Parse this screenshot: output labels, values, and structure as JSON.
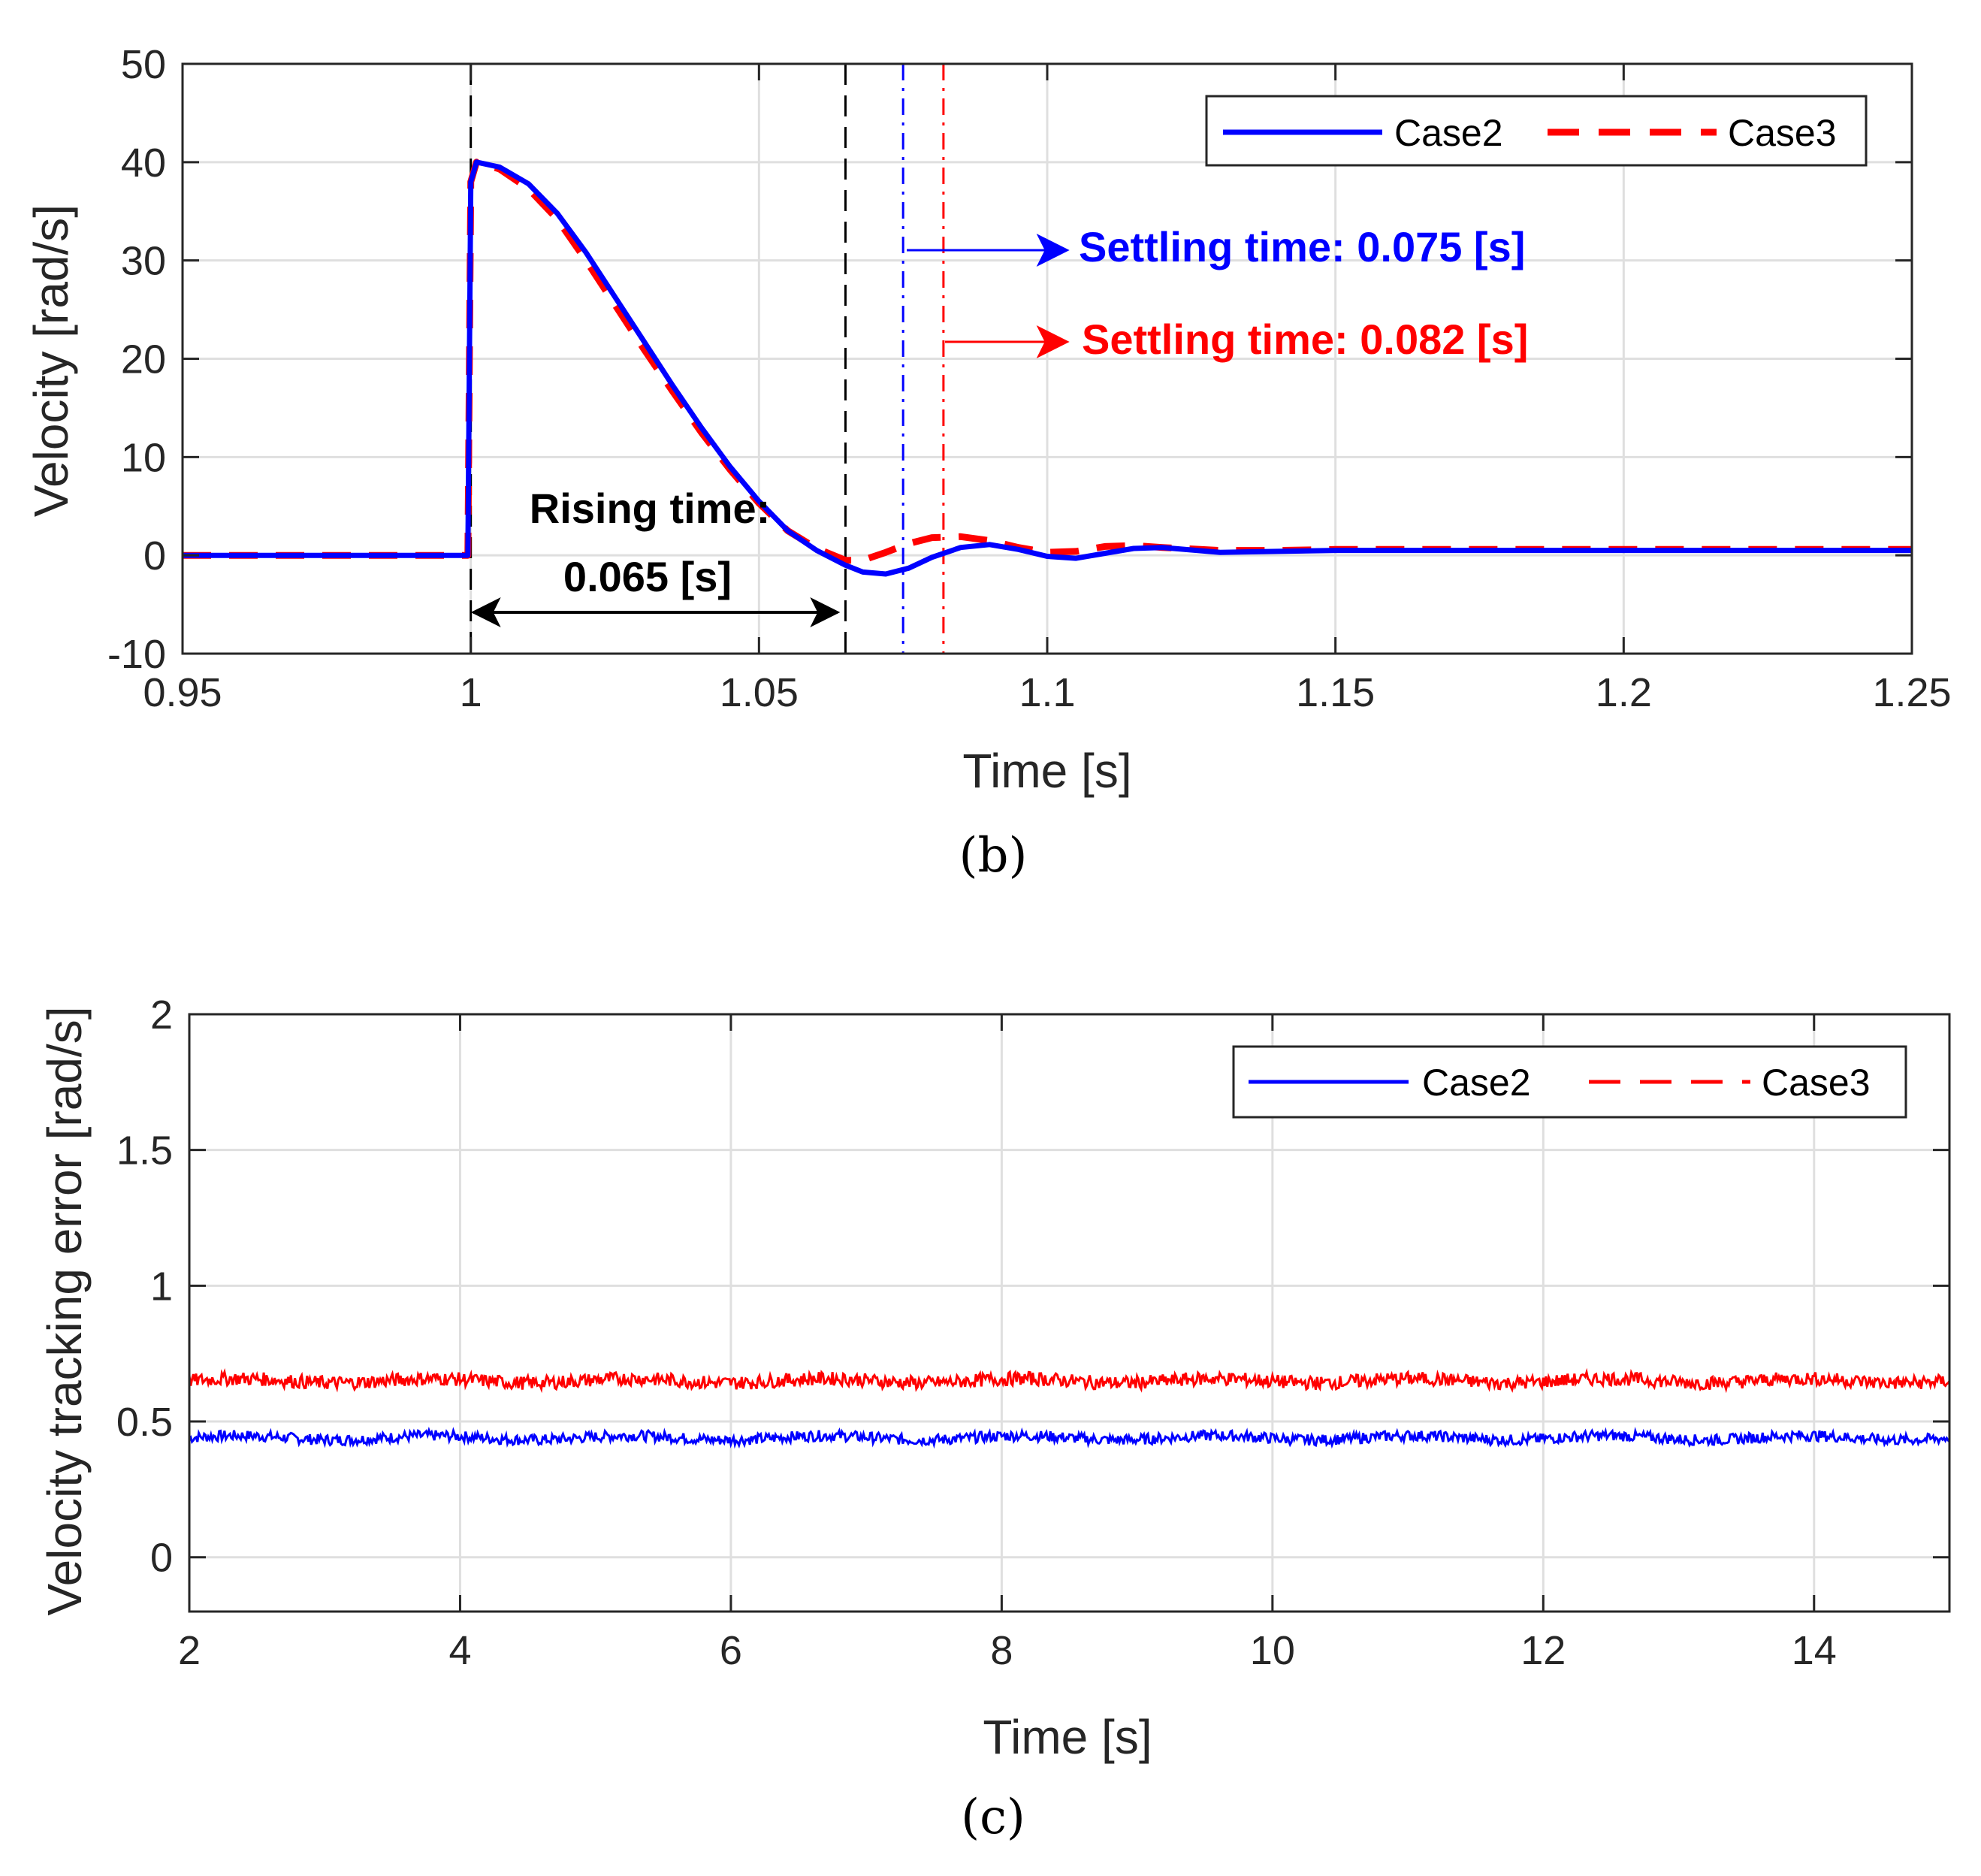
{
  "chart_data": [
    {
      "type": "line",
      "panel": "b",
      "caption": "(b)",
      "xlabel": "Time [s]",
      "ylabel": "Velocity [rad/s]",
      "xlim": [
        0.95,
        1.25
      ],
      "ylim": [
        -10,
        50
      ],
      "xticks": [
        0.95,
        1,
        1.05,
        1.1,
        1.15,
        1.2,
        1.25
      ],
      "xtick_labels": [
        "0.95",
        "1",
        "1.05",
        "1.1",
        "1.15",
        "1.2",
        "1.25"
      ],
      "yticks": [
        -10,
        0,
        10,
        20,
        30,
        40,
        50
      ],
      "ytick_labels": [
        "-10",
        "0",
        "10",
        "20",
        "30",
        "40",
        "50"
      ],
      "grid": true,
      "legend": {
        "position": "top-right",
        "entries": [
          "Case2",
          "Case3"
        ]
      },
      "series": [
        {
          "name": "Case2",
          "color": "#0000ff",
          "style": "solid",
          "x": [
            0.95,
            0.9995,
            1.0,
            1.001,
            1.005,
            1.01,
            1.015,
            1.02,
            1.025,
            1.03,
            1.035,
            1.04,
            1.045,
            1.05,
            1.055,
            1.06,
            1.065,
            1.068,
            1.072,
            1.076,
            1.08,
            1.085,
            1.09,
            1.095,
            1.1,
            1.105,
            1.11,
            1.115,
            1.12,
            1.13,
            1.14,
            1.15,
            1.2,
            1.25
          ],
          "y": [
            0,
            0,
            38,
            40,
            39.5,
            37.8,
            34.8,
            30.8,
            26.3,
            21.8,
            17.3,
            13.0,
            9.0,
            5.5,
            2.5,
            0.5,
            -1.0,
            -1.7,
            -1.9,
            -1.3,
            -0.2,
            0.8,
            1.1,
            0.6,
            -0.1,
            -0.3,
            0.2,
            0.7,
            0.8,
            0.3,
            0.4,
            0.5,
            0.5,
            0.5
          ]
        },
        {
          "name": "Case3",
          "color": "#ff0000",
          "style": "dashed",
          "x": [
            0.95,
            0.9995,
            1.0,
            1.001,
            1.005,
            1.01,
            1.015,
            1.02,
            1.025,
            1.03,
            1.035,
            1.04,
            1.045,
            1.05,
            1.055,
            1.06,
            1.065,
            1.068,
            1.072,
            1.076,
            1.08,
            1.085,
            1.09,
            1.095,
            1.1,
            1.105,
            1.11,
            1.115,
            1.12,
            1.13,
            1.14,
            1.15,
            1.2,
            1.25
          ],
          "y": [
            0,
            0,
            38,
            40,
            39.3,
            37.3,
            34.2,
            30.0,
            25.5,
            21.0,
            16.7,
            12.5,
            8.7,
            5.3,
            2.5,
            0.7,
            -0.5,
            -0.5,
            0.3,
            1.2,
            1.8,
            1.9,
            1.5,
            0.8,
            0.3,
            0.4,
            0.9,
            1.0,
            0.8,
            0.5,
            0.5,
            0.6,
            0.6,
            0.6
          ]
        }
      ],
      "vlines": [
        {
          "x": 1.0,
          "color": "#000000",
          "style": "dash"
        },
        {
          "x": 1.065,
          "color": "#000000",
          "style": "dash"
        },
        {
          "x": 1.075,
          "color": "#0000ff",
          "style": "dashdot"
        },
        {
          "x": 1.082,
          "color": "#ff0000",
          "style": "dashdot"
        }
      ],
      "annotations": {
        "rising_line1": "Rising time:",
        "rising_line2": "0.065 [s]",
        "settling_case2": "Settling time: 0.075 [s]",
        "settling_case3": "Settling time: 0.082 [s]"
      }
    },
    {
      "type": "line",
      "panel": "c",
      "caption": "(c)",
      "xlabel": "Time [s]",
      "ylabel": "Velocity tracking error [rad/s]",
      "xlim": [
        2,
        15
      ],
      "ylim": [
        -0.2,
        2
      ],
      "xticks": [
        2,
        4,
        6,
        8,
        10,
        12,
        14
      ],
      "xtick_labels": [
        "2",
        "4",
        "6",
        "8",
        "10",
        "12",
        "14"
      ],
      "yticks": [
        0,
        0.5,
        1,
        1.5,
        2
      ],
      "ytick_labels": [
        "0",
        "0.5",
        "1",
        "1.5",
        "2"
      ],
      "grid": true,
      "legend": {
        "position": "top-right",
        "entries": [
          "Case2",
          "Case3"
        ]
      },
      "series": [
        {
          "name": "Case2",
          "color": "#0000ff",
          "style": "solid",
          "x_range": [
            2,
            15
          ],
          "mean": 0.44,
          "noise_amplitude": 0.02
        },
        {
          "name": "Case3",
          "color": "#ff0000",
          "style": "dashed",
          "x_range": [
            2,
            15
          ],
          "mean": 0.65,
          "noise_amplitude": 0.025
        }
      ]
    }
  ]
}
